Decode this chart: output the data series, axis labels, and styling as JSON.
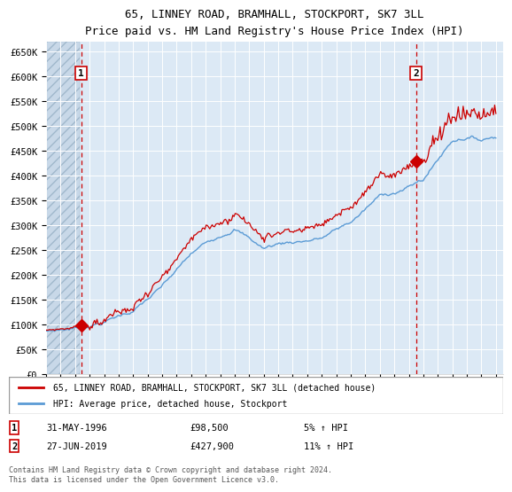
{
  "title": "65, LINNEY ROAD, BRAMHALL, STOCKPORT, SK7 3LL",
  "subtitle": "Price paid vs. HM Land Registry's House Price Index (HPI)",
  "ylabel_ticks": [
    "£0",
    "£50K",
    "£100K",
    "£150K",
    "£200K",
    "£250K",
    "£300K",
    "£350K",
    "£400K",
    "£450K",
    "£500K",
    "£550K",
    "£600K",
    "£650K"
  ],
  "ytick_values": [
    0,
    50000,
    100000,
    150000,
    200000,
    250000,
    300000,
    350000,
    400000,
    450000,
    500000,
    550000,
    600000,
    650000
  ],
  "ylim": [
    0,
    670000
  ],
  "xlim_start": 1994.0,
  "xlim_end": 2025.5,
  "sale1": {
    "year": 1996.42,
    "price": 98500,
    "label": "1"
  },
  "sale2": {
    "year": 2019.49,
    "price": 427900,
    "label": "2"
  },
  "legend_line1": "65, LINNEY ROAD, BRAMHALL, STOCKPORT, SK7 3LL (detached house)",
  "legend_line2": "HPI: Average price, detached house, Stockport",
  "info1_label": "1",
  "info1_date": "31-MAY-1996",
  "info1_price": "£98,500",
  "info1_hpi": "5% ↑ HPI",
  "info2_label": "2",
  "info2_date": "27-JUN-2019",
  "info2_price": "£427,900",
  "info2_hpi": "11% ↑ HPI",
  "footnote": "Contains HM Land Registry data © Crown copyright and database right 2024.\nThis data is licensed under the Open Government Licence v3.0.",
  "hpi_line_color": "#5b9bd5",
  "price_color": "#cc0000",
  "background_plot": "#dce9f5",
  "background_hatch": "#c8d8e8",
  "grid_color": "#ffffff",
  "dashed_line_color": "#cc0000"
}
